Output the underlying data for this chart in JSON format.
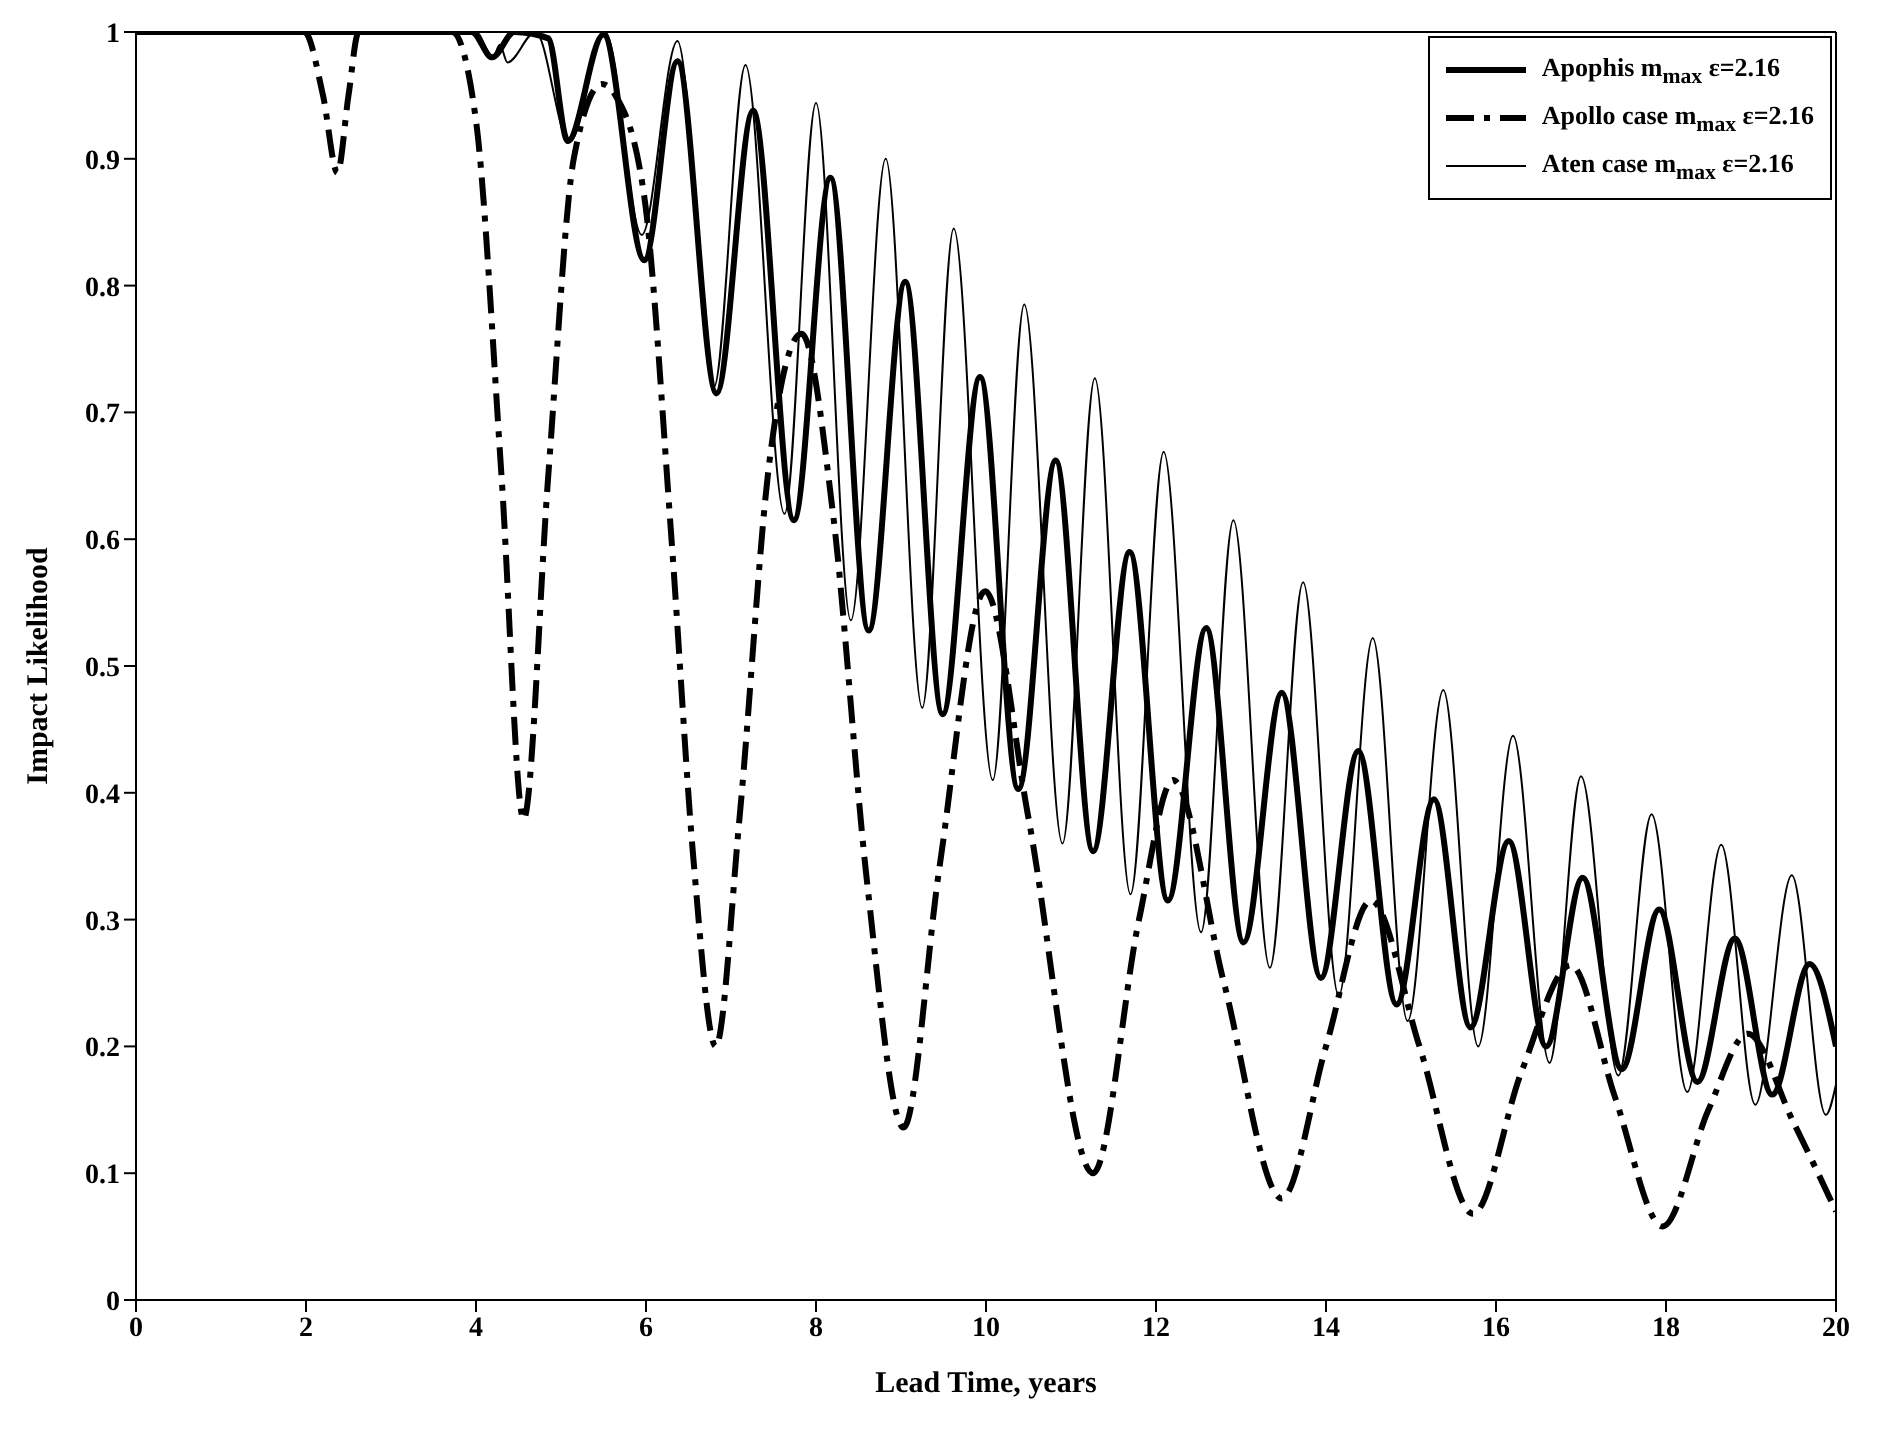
{
  "chart_data": {
    "type": "line",
    "xlabel": "Lead Time, years",
    "ylabel": "Impact Likelihood",
    "xlim": [
      0,
      20
    ],
    "xticks": [
      0,
      2,
      4,
      6,
      8,
      10,
      12,
      14,
      16,
      18,
      20
    ],
    "ylim": [
      0,
      1
    ],
    "yticks": [
      0,
      0.1,
      0.2,
      0.3,
      0.4,
      0.5,
      0.6,
      0.7,
      0.8,
      0.9,
      1
    ],
    "legend": "top right",
    "marker": "none",
    "series": [
      {
        "name": "Apophis m$_{max}$ ε=2.16",
        "color": "#000000",
        "line_style": "solid",
        "x": [
          0,
          3.95,
          4.19,
          4.45,
          4.85,
          5.08,
          5.5,
          5.98,
          6.37,
          6.83,
          7.26,
          7.74,
          8.17,
          8.62,
          9.05,
          9.49,
          9.93,
          10.38,
          10.82,
          11.26,
          11.69,
          12.14,
          12.59,
          13.03,
          13.48,
          13.94,
          14.38,
          14.83,
          15.27,
          15.7,
          16.15,
          16.59,
          17.02,
          17.48,
          17.92,
          18.37,
          18.81,
          19.25,
          19.69,
          20
        ],
        "values": [
          1,
          1,
          0.98,
          1,
          0.995,
          0.914,
          0.998,
          0.82,
          0.977,
          0.715,
          0.938,
          0.615,
          0.885,
          0.528,
          0.803,
          0.462,
          0.728,
          0.403,
          0.662,
          0.354,
          0.59,
          0.315,
          0.53,
          0.282,
          0.479,
          0.254,
          0.433,
          0.233,
          0.395,
          0.215,
          0.362,
          0.2,
          0.333,
          0.182,
          0.308,
          0.172,
          0.285,
          0.162,
          0.265,
          0.2
        ]
      },
      {
        "name": "Apollo case m$_{max}$ ε=2.16",
        "color": "#000000",
        "line_style": "dashed",
        "x": [
          0,
          1.98,
          2.2,
          2.37,
          2.5,
          2.62,
          3.72,
          4.0,
          4.3,
          4.56,
          4.85,
          5.15,
          5.48,
          5.64,
          5.98,
          6.3,
          6.56,
          6.82,
          7.1,
          7.45,
          7.83,
          8.2,
          8.6,
          9.03,
          9.45,
          9.99,
          10.5,
          11.26,
          11.8,
          12.2,
          12.8,
          13.48,
          14.0,
          14.53,
          15.1,
          15.73,
          16.3,
          16.88,
          17.4,
          17.96,
          18.5,
          18.96,
          19.5,
          20
        ],
        "values": [
          1,
          1,
          0.95,
          0.889,
          0.95,
          1,
          1,
          0.93,
          0.65,
          0.379,
          0.65,
          0.9,
          0.959,
          0.95,
          0.87,
          0.6,
          0.346,
          0.2,
          0.38,
          0.66,
          0.762,
          0.62,
          0.33,
          0.136,
          0.34,
          0.559,
          0.38,
          0.1,
          0.3,
          0.41,
          0.25,
          0.08,
          0.2,
          0.315,
          0.2,
          0.068,
          0.18,
          0.264,
          0.16,
          0.058,
          0.15,
          0.21,
          0.14,
          0.07
        ]
      },
      {
        "name": "Aten case m$_{max}$ ε=2.16",
        "color": "#000000",
        "line_style": "solid",
        "x": [
          0,
          4.0,
          4.2,
          4.28,
          4.37,
          4.7,
          5.1,
          5.52,
          5.95,
          6.37,
          6.8,
          7.17,
          7.63,
          8.0,
          8.41,
          8.82,
          9.25,
          9.62,
          10.08,
          10.45,
          10.9,
          11.28,
          11.7,
          12.09,
          12.53,
          12.91,
          13.34,
          13.73,
          14.15,
          14.55,
          14.96,
          15.38,
          15.79,
          16.2,
          16.63,
          17.0,
          17.44,
          17.83,
          18.25,
          18.65,
          19.05,
          19.48,
          19.88,
          20
        ],
        "values": [
          1,
          1,
          0.98,
          0.99,
          0.976,
          1,
          0.913,
          1,
          0.84,
          0.993,
          0.72,
          0.974,
          0.62,
          0.944,
          0.536,
          0.9,
          0.467,
          0.845,
          0.41,
          0.785,
          0.36,
          0.727,
          0.32,
          0.669,
          0.29,
          0.615,
          0.262,
          0.566,
          0.24,
          0.522,
          0.22,
          0.481,
          0.2,
          0.445,
          0.187,
          0.413,
          0.177,
          0.383,
          0.164,
          0.359,
          0.154,
          0.335,
          0.146,
          0.17
        ]
      }
    ]
  }
}
